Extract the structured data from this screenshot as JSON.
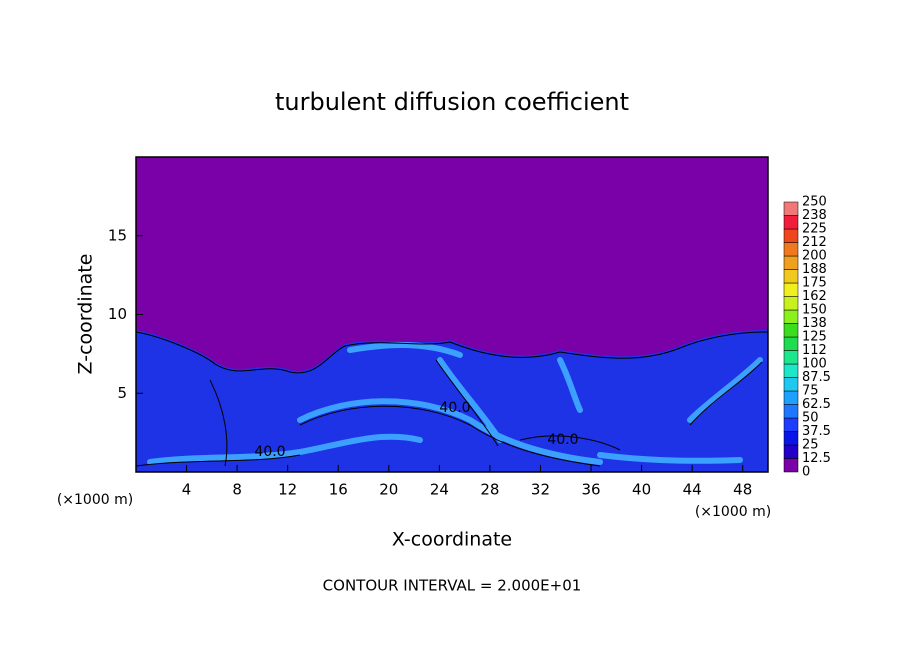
{
  "chart_data": {
    "type": "contour",
    "title": "turbulent diffusion coefficient",
    "xlabel": "X-coordinate",
    "ylabel": "Z-coordinate",
    "x_unit": "(×1000 m)",
    "y_unit": "(×1000 m)",
    "xlim": [
      0,
      50
    ],
    "xticks": [
      4,
      8,
      12,
      16,
      20,
      24,
      28,
      32,
      36,
      40,
      44,
      48
    ],
    "ylim": [
      0,
      20
    ],
    "yticks": [
      5,
      10,
      15
    ],
    "colorbar": {
      "levels": [
        0,
        12.5,
        25,
        37.5,
        50,
        62.5,
        75,
        87.5,
        100,
        112,
        125,
        138,
        150,
        162,
        175,
        188,
        200,
        212,
        225,
        238,
        250
      ],
      "colors": [
        "#7a00a8",
        "#2200c8",
        "#0a14e6",
        "#1e3cff",
        "#1e78ff",
        "#1ea0ff",
        "#1ec8f0",
        "#1ee6c8",
        "#1ee68c",
        "#1edc50",
        "#3cdc1e",
        "#8cf01e",
        "#c8f01e",
        "#f0f01e",
        "#f0c81e",
        "#f0a01e",
        "#f0781e",
        "#f0461e",
        "#f01e3c",
        "#f07878"
      ]
    },
    "contour_labels": [
      "40.0",
      "40.0",
      "40.0"
    ],
    "footer": "CONTOUR INTERVAL = 2.000E+01"
  }
}
